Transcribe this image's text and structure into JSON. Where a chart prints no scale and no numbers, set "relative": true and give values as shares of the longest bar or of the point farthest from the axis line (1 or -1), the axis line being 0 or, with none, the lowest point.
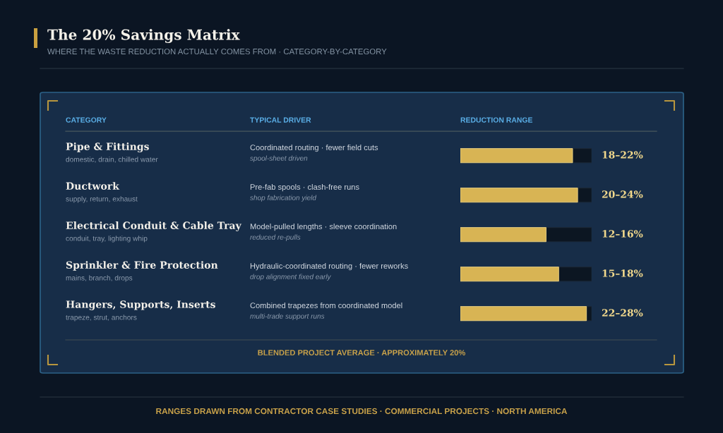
{
  "chart_data": {
    "type": "bar",
    "orientation": "horizontal",
    "relative": true,
    "title": "The 20% Savings Matrix",
    "subtitle": "WHERE THE WASTE REDUCTION ACTUALLY COMES FROM · CATEGORY-BY-CATEGORY",
    "ylabel": "CATEGORY",
    "xlabel": "REDUCTION RANGE",
    "categories": [
      "Pipe & Fittings",
      "Ductwork",
      "Electrical Conduit & Cable Tray",
      "Sprinkler & Fire Protection",
      "Hangers, Supports, Inserts"
    ],
    "values": [
      0.89,
      0.93,
      0.68,
      0.78,
      1
    ],
    "color": "#d8b454",
    "annotations": [
      "TYPICAL DRIVER",
      "domestic, drain, chilled water",
      "Coordinated routing · fewer field cuts",
      "spool-sheet driven",
      "18–22%",
      "supply, return, exhaust",
      "Pre-fab spools · clash-free runs",
      "shop fabrication yield",
      "20–24%",
      "conduit, tray, lighting whip",
      "Model-pulled lengths · sleeve coordination",
      "reduced re-pulls",
      "12–16%",
      "mains, branch, drops",
      "Hydraulic-coordinated routing · fewer reworks",
      "drop alignment fixed early",
      "15–18%",
      "trapeze, strut, anchors",
      "Combined trapezes from coordinated model",
      "multi-trade support runs",
      "22–28%",
      "BLENDED PROJECT AVERAGE · APPROXIMATELY 20%",
      "RANGES DRAWN FROM CONTRACTOR CASE STUDIES · COMMERCIAL PROJECTS · NORTH AMERICA"
    ]
  }
}
